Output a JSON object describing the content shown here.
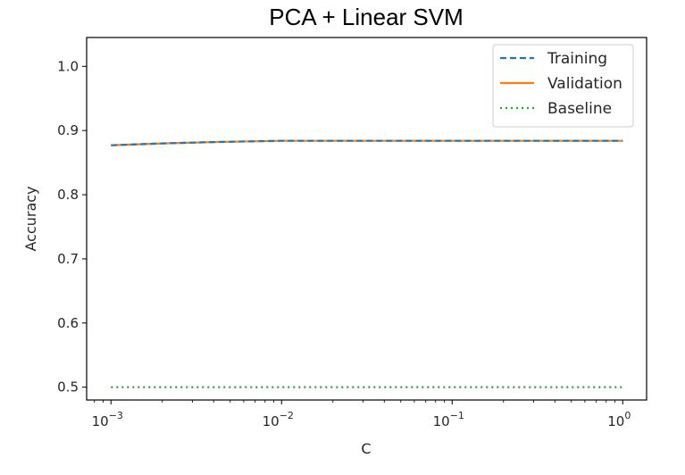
{
  "chart_data": {
    "type": "line",
    "title": "PCA + Linear SVM",
    "xlabel": "C",
    "ylabel": "Accuracy",
    "xscale": "log",
    "xlim": [
      0.00072,
      1.38
    ],
    "ylim": [
      0.48,
      1.045
    ],
    "xticks": [
      {
        "value": 0.001,
        "base": "10",
        "exp": "−3"
      },
      {
        "value": 0.01,
        "base": "10",
        "exp": "−2"
      },
      {
        "value": 0.1,
        "base": "10",
        "exp": "−1"
      },
      {
        "value": 1,
        "base": "10",
        "exp": "0"
      }
    ],
    "yticks": [
      {
        "value": 0.5,
        "label": "0.5"
      },
      {
        "value": 0.6,
        "label": "0.6"
      },
      {
        "value": 0.7,
        "label": "0.7"
      },
      {
        "value": 0.8,
        "label": "0.8"
      },
      {
        "value": 0.9,
        "label": "0.9"
      },
      {
        "value": 1.0,
        "label": "1.0"
      }
    ],
    "x": [
      0.001,
      0.002,
      0.004,
      0.01,
      0.03,
      0.1,
      0.3,
      1
    ],
    "series": [
      {
        "name": "Training",
        "style": "dashed",
        "color": "#1f77b4",
        "values": [
          0.877,
          0.88,
          0.882,
          0.884,
          0.884,
          0.884,
          0.884,
          0.884
        ]
      },
      {
        "name": "Validation",
        "style": "solid",
        "color": "#ff7f0e",
        "values": [
          0.877,
          0.88,
          0.882,
          0.884,
          0.884,
          0.884,
          0.884,
          0.884
        ]
      },
      {
        "name": "Baseline",
        "style": "dotted",
        "color": "#2ca02c",
        "values": [
          0.5,
          0.5,
          0.5,
          0.5,
          0.5,
          0.5,
          0.5,
          0.5
        ]
      }
    ],
    "legend": "top-right",
    "grid": false
  }
}
